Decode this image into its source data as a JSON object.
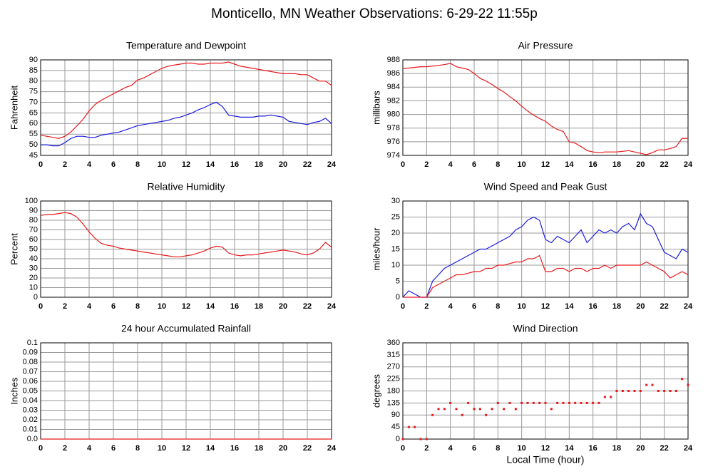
{
  "title": "Monticello, MN Weather Observations: 6-29-22 11:55p",
  "chart_data": [
    {
      "type": "line",
      "title": "Temperature and Dewpoint",
      "ylabel": "Fahrenheit",
      "grid": true,
      "x": [
        0,
        0.5,
        1,
        1.5,
        2,
        2.5,
        3,
        3.5,
        4,
        4.5,
        5,
        5.5,
        6,
        6.5,
        7,
        7.5,
        8,
        8.5,
        9,
        9.5,
        10,
        10.5,
        11,
        11.5,
        12,
        12.5,
        13,
        13.5,
        14,
        14.5,
        15,
        15.5,
        16,
        16.5,
        17,
        17.5,
        18,
        18.5,
        19,
        19.5,
        20,
        20.5,
        21,
        21.5,
        22,
        22.5,
        23,
        23.5,
        24
      ],
      "xlim": [
        0,
        24
      ],
      "xticks": [
        0,
        2,
        4,
        6,
        8,
        10,
        12,
        14,
        16,
        18,
        20,
        22,
        24
      ],
      "ylim": [
        45,
        90
      ],
      "yticks": [
        45,
        50,
        55,
        60,
        65,
        70,
        75,
        80,
        85,
        90
      ],
      "series": [
        {
          "color": "#e8191c",
          "values": [
            54.5,
            54,
            53.5,
            53,
            54,
            56,
            59,
            62,
            66,
            69,
            71,
            72.5,
            74,
            75.5,
            77,
            78,
            80.5,
            81.5,
            83,
            84.5,
            86,
            87,
            87.5,
            88,
            88.5,
            88.5,
            88,
            88,
            88.5,
            88.5,
            88.5,
            89,
            88,
            87,
            86.5,
            86,
            85.5,
            85,
            84.5,
            84,
            83.5,
            83.5,
            83.5,
            83,
            83,
            81.5,
            80,
            80,
            78
          ]
        },
        {
          "color": "#1a1ae0",
          "values": [
            50,
            50,
            49.5,
            49.5,
            51,
            53,
            54,
            54,
            53.5,
            53.5,
            54.5,
            55,
            55.5,
            56,
            57,
            58,
            59,
            59.5,
            60,
            60.5,
            61,
            61.5,
            62.5,
            63,
            64,
            65,
            66.5,
            67.5,
            69,
            70,
            68,
            64,
            63.5,
            63,
            63,
            63,
            63.5,
            63.5,
            64,
            63.5,
            63,
            61,
            60.5,
            60,
            59.5,
            60.5,
            61,
            62.5,
            60
          ]
        }
      ]
    },
    {
      "type": "line",
      "title": "Air Pressure",
      "ylabel": "millibars",
      "grid": true,
      "x": [
        0,
        0.5,
        1,
        1.5,
        2,
        2.5,
        3,
        3.5,
        4,
        4.5,
        5,
        5.5,
        6,
        6.5,
        7,
        7.5,
        8,
        8.5,
        9,
        9.5,
        10,
        10.5,
        11,
        11.5,
        12,
        12.5,
        13,
        13.5,
        14,
        14.5,
        15,
        15.5,
        16,
        16.5,
        17,
        17.5,
        18,
        18.5,
        19,
        19.5,
        20,
        20.5,
        21,
        21.5,
        22,
        22.5,
        23,
        23.5,
        24
      ],
      "xlim": [
        0,
        24
      ],
      "xticks": [
        0,
        2,
        4,
        6,
        8,
        10,
        12,
        14,
        16,
        18,
        20,
        22,
        24
      ],
      "ylim": [
        974,
        988
      ],
      "yticks": [
        974,
        976,
        978,
        980,
        982,
        984,
        986,
        988
      ],
      "color": "#e8191c",
      "values": [
        986.7,
        986.8,
        986.9,
        987,
        987,
        987.1,
        987.2,
        987.3,
        987.5,
        987,
        986.8,
        986.6,
        986,
        985.3,
        984.9,
        984.4,
        983.8,
        983.3,
        982.6,
        982,
        981.2,
        980.5,
        979.9,
        979.4,
        979,
        978.3,
        977.8,
        977.5,
        976,
        975.8,
        975.3,
        974.7,
        974.5,
        974.4,
        974.5,
        974.5,
        974.5,
        974.6,
        974.7,
        974.5,
        974.3,
        974.1,
        974.4,
        974.8,
        974.8,
        975,
        975.3,
        976.5,
        976.5
      ]
    },
    {
      "type": "line",
      "title": "Relative Humidity",
      "ylabel": "Percent",
      "grid": true,
      "x": [
        0,
        0.5,
        1,
        1.5,
        2,
        2.5,
        3,
        3.5,
        4,
        4.5,
        5,
        5.5,
        6,
        6.5,
        7,
        7.5,
        8,
        8.5,
        9,
        9.5,
        10,
        10.5,
        11,
        11.5,
        12,
        12.5,
        13,
        13.5,
        14,
        14.5,
        15,
        15.5,
        16,
        16.5,
        17,
        17.5,
        18,
        18.5,
        19,
        19.5,
        20,
        20.5,
        21,
        21.5,
        22,
        22.5,
        23,
        23.5,
        24
      ],
      "xlim": [
        0,
        24
      ],
      "xticks": [
        0,
        2,
        4,
        6,
        8,
        10,
        12,
        14,
        16,
        18,
        20,
        22,
        24
      ],
      "ylim": [
        0,
        100
      ],
      "yticks": [
        0,
        10,
        20,
        30,
        40,
        50,
        60,
        70,
        80,
        90,
        100
      ],
      "color": "#e8191c",
      "values": [
        85,
        86,
        86,
        87,
        88,
        87,
        83,
        76,
        68,
        61,
        56,
        54,
        53,
        51,
        50,
        49,
        48,
        47,
        46,
        45,
        44,
        43,
        42,
        42,
        43,
        44,
        46,
        48,
        51,
        53,
        52,
        46,
        44,
        43,
        44,
        44,
        45,
        46,
        47,
        48,
        49,
        48,
        47,
        45,
        44,
        46,
        50,
        57,
        52
      ]
    },
    {
      "type": "line",
      "title": "Wind Speed and Peak Gust",
      "ylabel": "miles/hour",
      "grid": true,
      "x": [
        0,
        0.5,
        1,
        1.5,
        2,
        2.5,
        3,
        3.5,
        4,
        4.5,
        5,
        5.5,
        6,
        6.5,
        7,
        7.5,
        8,
        8.5,
        9,
        9.5,
        10,
        10.5,
        11,
        11.5,
        12,
        12.5,
        13,
        13.5,
        14,
        14.5,
        15,
        15.5,
        16,
        16.5,
        17,
        17.5,
        18,
        18.5,
        19,
        19.5,
        20,
        20.5,
        21,
        21.5,
        22,
        22.5,
        23,
        23.5,
        24
      ],
      "xlim": [
        0,
        24
      ],
      "xticks": [
        0,
        2,
        4,
        6,
        8,
        10,
        12,
        14,
        16,
        18,
        20,
        22,
        24
      ],
      "ylim": [
        0,
        30
      ],
      "yticks": [
        0,
        5,
        10,
        15,
        20,
        25,
        30
      ],
      "series": [
        {
          "color": "#1a1ae0",
          "values": [
            0,
            2,
            1,
            0,
            0,
            5,
            7,
            9,
            10,
            11,
            12,
            13,
            14,
            15,
            15,
            16,
            17,
            18,
            19,
            21,
            22,
            24,
            25,
            24,
            18,
            17,
            19,
            18,
            17,
            19,
            21,
            17,
            19,
            21,
            20,
            21,
            20,
            22,
            23,
            21,
            26,
            23,
            22,
            18,
            14,
            13,
            12,
            15,
            14
          ]
        },
        {
          "color": "#e8191c",
          "values": [
            0,
            0,
            0,
            0,
            0,
            3,
            4,
            5,
            6,
            7,
            7,
            7.5,
            8,
            8,
            9,
            9,
            10,
            10,
            10.5,
            11,
            11,
            12,
            12,
            13,
            8,
            8,
            9,
            9,
            8,
            9,
            9,
            8,
            9,
            9,
            10,
            9,
            10,
            10,
            10,
            10,
            10,
            11,
            10,
            9,
            8,
            6,
            7,
            8,
            7
          ]
        }
      ]
    },
    {
      "type": "line",
      "title": "24 hour Accumulated Rainfall",
      "ylabel": "Inches",
      "grid": true,
      "x": [
        0,
        0.5,
        1,
        1.5,
        2,
        2.5,
        3,
        3.5,
        4,
        4.5,
        5,
        5.5,
        6,
        6.5,
        7,
        7.5,
        8,
        8.5,
        9,
        9.5,
        10,
        10.5,
        11,
        11.5,
        12,
        12.5,
        13,
        13.5,
        14,
        14.5,
        15,
        15.5,
        16,
        16.5,
        17,
        17.5,
        18,
        18.5,
        19,
        19.5,
        20,
        20.5,
        21,
        21.5,
        22,
        22.5,
        23,
        23.5,
        24
      ],
      "xlim": [
        0,
        24
      ],
      "xticks": [
        0,
        2,
        4,
        6,
        8,
        10,
        12,
        14,
        16,
        18,
        20,
        22,
        24
      ],
      "ylim": [
        0,
        0.1
      ],
      "yticks": [
        {
          "value": 0,
          "label": "0.0"
        },
        0.01,
        0.02,
        0.03,
        0.04,
        0.05,
        0.06,
        0.07,
        0.08,
        0.09,
        0.1
      ],
      "color": "#e8191c",
      "values": [
        0,
        0,
        0,
        0,
        0,
        0,
        0,
        0,
        0,
        0,
        0,
        0,
        0,
        0,
        0,
        0,
        0,
        0,
        0,
        0,
        0,
        0,
        0,
        0,
        0,
        0,
        0,
        0,
        0,
        0,
        0,
        0,
        0,
        0,
        0,
        0,
        0,
        0,
        0,
        0,
        0,
        0,
        0,
        0,
        0,
        0,
        0,
        0,
        0
      ]
    },
    {
      "type": "scatter",
      "title": "Wind Direction",
      "ylabel": "degrees",
      "xlabel": "Local Time (hour)",
      "grid": true,
      "x": [
        0,
        0.5,
        1,
        1.5,
        2,
        2.5,
        3,
        3.5,
        4,
        4.5,
        5,
        5.5,
        6,
        6.5,
        7,
        7.5,
        8,
        8.5,
        9,
        9.5,
        10,
        10.5,
        11,
        11.5,
        12,
        12.5,
        13,
        13.5,
        14,
        14.5,
        15,
        15.5,
        16,
        16.5,
        17,
        17.5,
        18,
        18.5,
        19,
        19.5,
        20,
        20.5,
        21,
        21.5,
        22,
        22.5,
        23,
        23.5,
        24
      ],
      "xlim": [
        0,
        24
      ],
      "xticks": [
        0,
        2,
        4,
        6,
        8,
        10,
        12,
        14,
        16,
        18,
        20,
        22,
        24
      ],
      "ylim": [
        0,
        360
      ],
      "yticks": [
        0,
        45,
        90,
        135,
        180,
        225,
        270,
        315,
        360
      ],
      "color": "#e8191c",
      "values": [
        0,
        45,
        45,
        0,
        0,
        90,
        112.5,
        112.5,
        135,
        112.5,
        90,
        135,
        112.5,
        112.5,
        90,
        112.5,
        135,
        112.5,
        135,
        112.5,
        135,
        135,
        135,
        135,
        135,
        112.5,
        135,
        135,
        135,
        135,
        135,
        135,
        135,
        135,
        157.5,
        157.5,
        180,
        180,
        180,
        180,
        180,
        202.5,
        202.5,
        180,
        180,
        180,
        180,
        225,
        202.5
      ]
    }
  ]
}
